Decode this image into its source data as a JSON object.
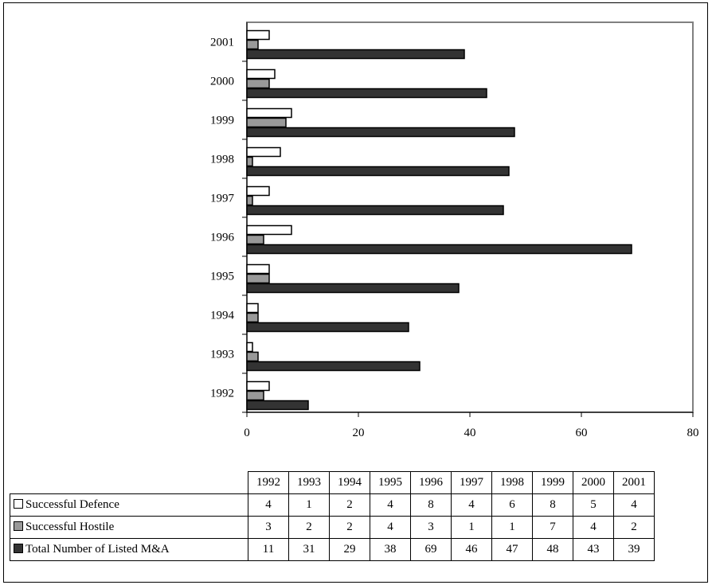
{
  "chart_data": {
    "type": "bar",
    "orientation": "horizontal",
    "categories": [
      "1992",
      "1993",
      "1994",
      "1995",
      "1996",
      "1997",
      "1998",
      "1999",
      "2000",
      "2001"
    ],
    "series": [
      {
        "name": "Successful Defence",
        "color": "#ffffff",
        "values": [
          4,
          1,
          2,
          4,
          8,
          4,
          6,
          8,
          5,
          4
        ]
      },
      {
        "name": "Successful Hostile",
        "color": "#999999",
        "values": [
          3,
          2,
          2,
          4,
          3,
          1,
          1,
          7,
          4,
          2
        ]
      },
      {
        "name": "Total Number of Listed M&A",
        "color": "#333333",
        "values": [
          11,
          31,
          29,
          38,
          69,
          46,
          47,
          48,
          43,
          39
        ]
      }
    ],
    "xlim": [
      0,
      80
    ],
    "xticks": [
      0,
      20,
      40,
      60,
      80
    ],
    "title": "",
    "xlabel": "",
    "ylabel": "",
    "grid": false,
    "legend": "data-table-below"
  }
}
